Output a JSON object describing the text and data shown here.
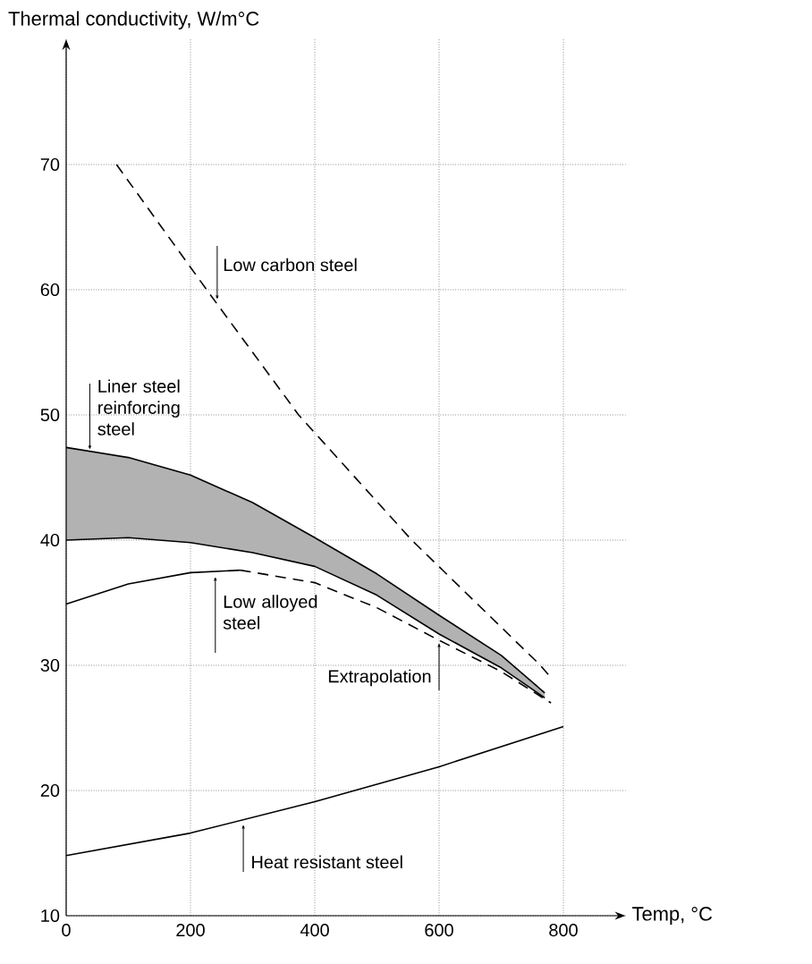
{
  "chart_data": {
    "type": "line",
    "xlabel": "Temp, °C",
    "ylabel": "Thermal conductivity, W/m°C",
    "series": [
      {
        "color": "#000000",
        "line_style": "dashed",
        "x": [
          81,
          226,
          374,
          556,
          763,
          780
        ],
        "values": [
          70,
          60,
          50,
          40,
          30,
          29
        ]
      },
      {
        "color": "#000000",
        "line_style": "solid",
        "x": [
          0,
          100,
          200,
          300,
          400,
          500,
          600,
          700,
          770
        ],
        "values": [
          47.4,
          46.6,
          45.2,
          43,
          40.2,
          37.3,
          34,
          30.8,
          27.8
        ],
        "upper": [
          47.4,
          46.6,
          45.2,
          43,
          40.2,
          37.3,
          34,
          30.8,
          27.8
        ],
        "lower": [
          40,
          40.2,
          39.8,
          39,
          37.9,
          35.6,
          32.5,
          29.8,
          27.4
        ]
      },
      {
        "color": "#000000",
        "line_style": "solid",
        "x": [
          0,
          100,
          200,
          300,
          400,
          500,
          600,
          700,
          770
        ],
        "values": [
          40,
          40.2,
          39.8,
          39,
          37.9,
          35.6,
          32.5,
          29.8,
          27.4
        ]
      },
      {
        "color": "#000000",
        "line_style": "solid",
        "x": [
          0,
          100,
          200,
          280
        ],
        "values": [
          34.9,
          36.5,
          37.4,
          37.6
        ]
      },
      {
        "color": "#000000",
        "line_style": "dashed",
        "x": [
          280,
          400,
          500,
          600,
          700,
          780
        ],
        "values": [
          37.6,
          36.6,
          34.6,
          32,
          29.5,
          27
        ]
      },
      {
        "color": "#000000",
        "line_style": "solid",
        "x": [
          0,
          200,
          400,
          600,
          800
        ],
        "values": [
          14.8,
          16.6,
          19.1,
          21.9,
          25.1
        ]
      }
    ],
    "annotations": [
      {
        "text": "Low carbon steel",
        "x": 243,
        "y": 59
      },
      {
        "text": "Liner steel reinforcing steel",
        "x": 38,
        "y": 47
      },
      {
        "text": "Low alloyed steel",
        "x": 240,
        "y": 37.3
      },
      {
        "text": "Extrapolation",
        "x": 600,
        "y": 32
      },
      {
        "text": "Heat resistant steel",
        "x": 285,
        "y": 17.5
      }
    ],
    "xlim": [
      0,
      900
    ],
    "ylim": [
      10,
      80
    ],
    "xticks": [
      0,
      200,
      400,
      600,
      800
    ],
    "yticks": [
      10,
      20,
      30,
      40,
      50,
      60,
      70
    ],
    "grid": true
  }
}
